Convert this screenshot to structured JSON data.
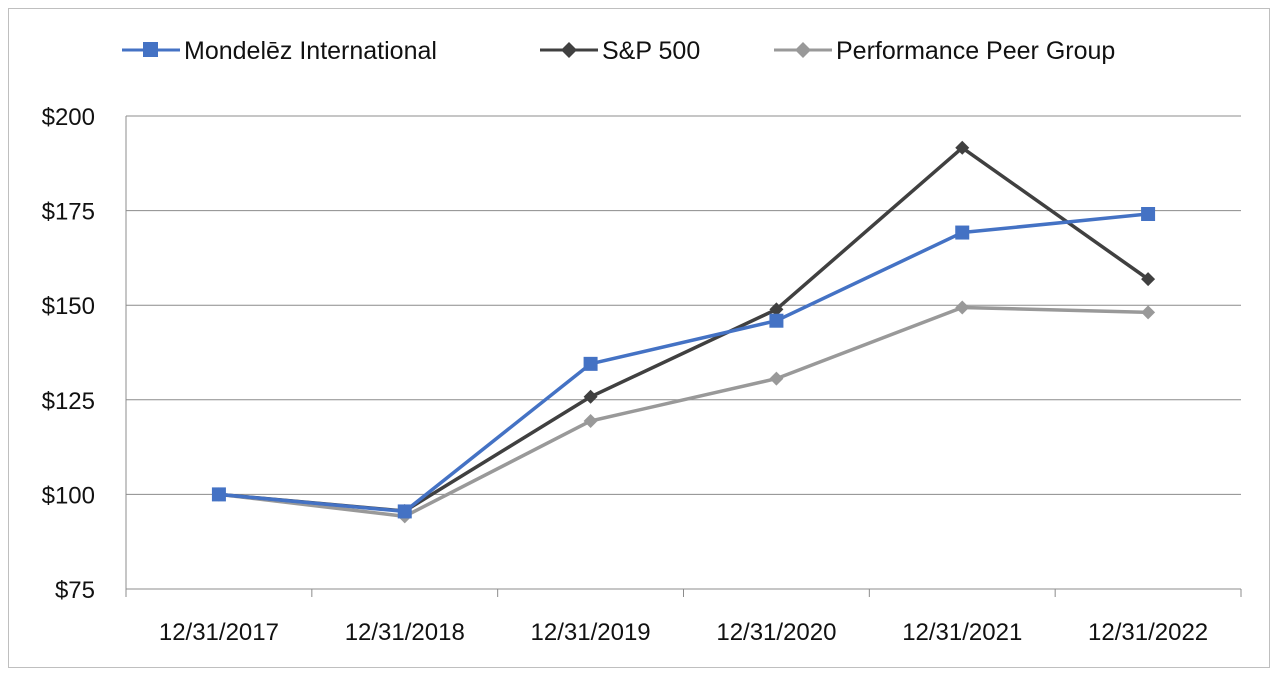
{
  "chart_data": {
    "type": "line",
    "title": "",
    "xlabel": "",
    "ylabel": "",
    "categories": [
      "12/31/2017",
      "12/31/2018",
      "12/31/2019",
      "12/31/2020",
      "12/31/2021",
      "12/31/2022"
    ],
    "y_tick_labels": [
      "$200",
      "$175",
      "$150",
      "$125",
      "$100",
      "$75"
    ],
    "ylim": [
      75,
      200
    ],
    "y_ticks": [
      200,
      175,
      150,
      125,
      100,
      75
    ],
    "grid": true,
    "legend_position": "top",
    "series": [
      {
        "name": "Mondelēz International",
        "marker": "square",
        "color": "#4472c4",
        "values": [
          100,
          95.5,
          134.5,
          145.9,
          169.2,
          174.1
        ]
      },
      {
        "name": "S&P 500",
        "marker": "diamond",
        "color": "#404040",
        "values": [
          100,
          95.6,
          125.8,
          148.9,
          191.6,
          156.9
        ]
      },
      {
        "name": "Performance Peer Group",
        "marker": "diamond",
        "color": "#999999",
        "values": [
          100,
          94.2,
          119.4,
          130.6,
          149.4,
          148.1
        ]
      }
    ]
  }
}
